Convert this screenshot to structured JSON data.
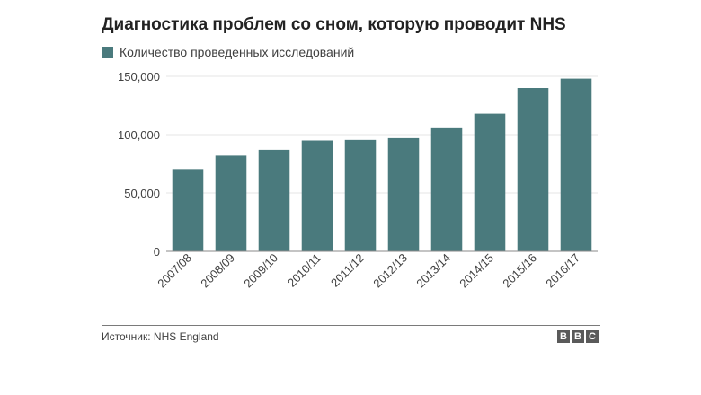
{
  "title": "Диагностика проблем со сном, которую проводит NHS",
  "source": "Источник: NHS England",
  "logo": [
    "B",
    "B",
    "C"
  ],
  "colors": {
    "bar": "#4a7a7d",
    "grid": "#e6e6e6",
    "axis": "#8a8a8a"
  },
  "chart_data": {
    "type": "bar",
    "title": "Диагностика проблем со сном, которую проводит NHS",
    "categories": [
      "2007/08",
      "2008/09",
      "2009/10",
      "2010/11",
      "2011/12",
      "2012/13",
      "2013/14",
      "2014/15",
      "2015/16",
      "2016/17"
    ],
    "series": [
      {
        "name": "Количество проведенных исследований",
        "values": [
          70500,
          82000,
          87000,
          95000,
          95500,
          97000,
          105500,
          118000,
          140000,
          148000
        ]
      }
    ],
    "ylim": [
      0,
      150000
    ],
    "yticks": [
      0,
      50000,
      100000,
      150000
    ],
    "ytick_labels": [
      "0",
      "50,000",
      "100,000",
      "150,000"
    ],
    "grid": true,
    "legend_position": "top-left"
  }
}
